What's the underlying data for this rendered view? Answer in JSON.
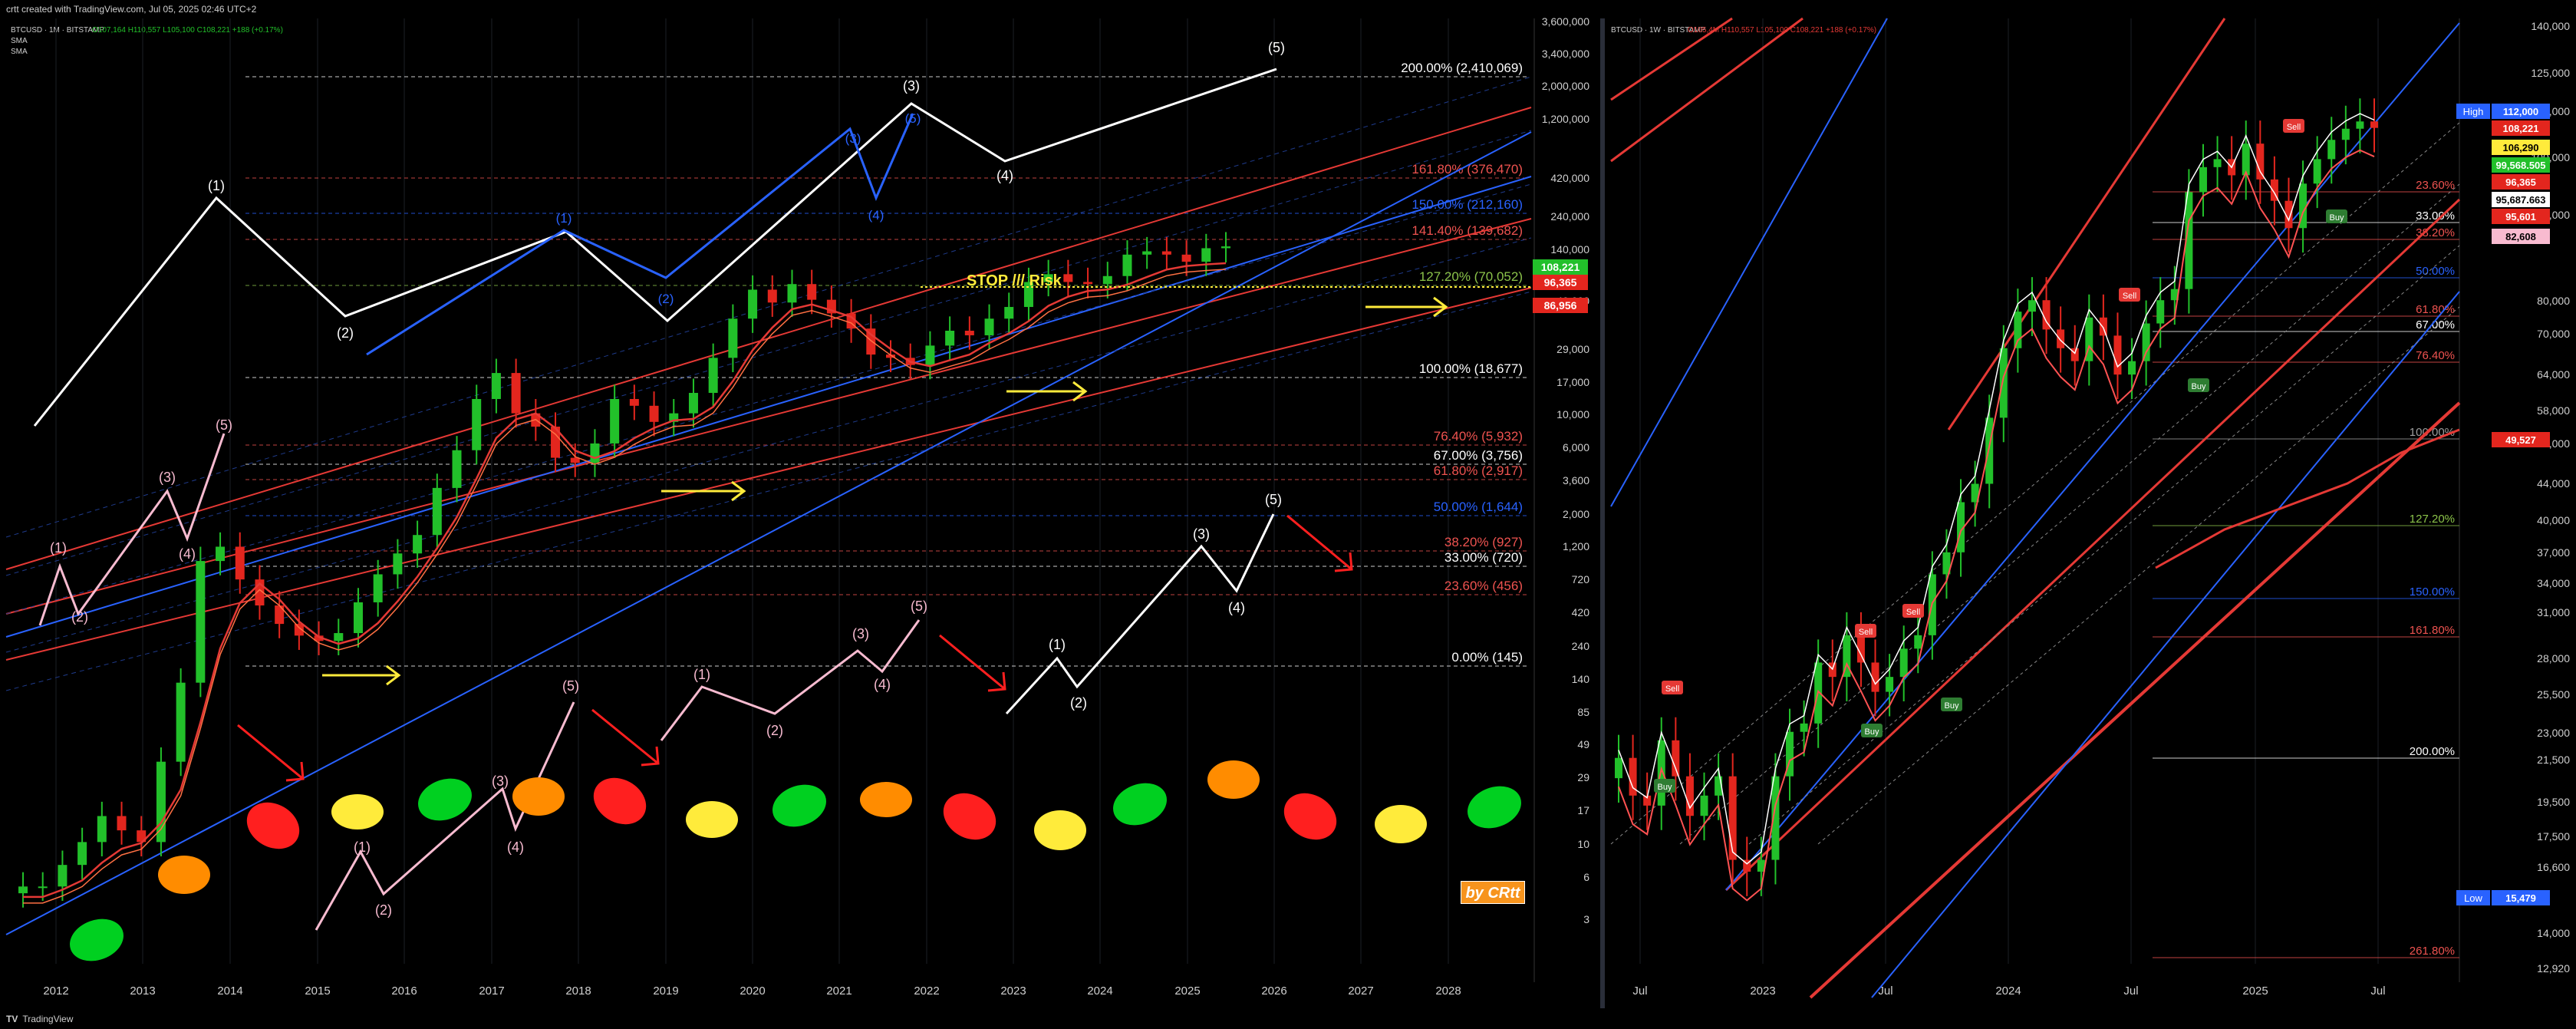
{
  "header": {
    "text": "crtt created with TradingView.com, Jul 05, 2025 02:46 UTC+2"
  },
  "footer": {
    "brand": "TradingView"
  },
  "byline": "by CRtt",
  "colors": {
    "up": "#22c02a",
    "down": "#e3261e",
    "white": "#ffffff",
    "blue": "#2962ff",
    "yellow": "#ffeb3b",
    "orange": "#ff8c00",
    "pink": "#f8bbd0",
    "red": "#ff3b30"
  },
  "chart_data": [
    {
      "type": "candlestick",
      "title": "BTCUSD · 1M · BITSTAMP",
      "ohlc": {
        "open": "107,164",
        "high": "110,557",
        "low": "105,100",
        "close": "108,221",
        "change": "+188 (+0.17%)"
      },
      "indicators": [
        "SMA",
        "SMA"
      ],
      "y_scale": "log",
      "x_ticks": [
        "2012",
        "2013",
        "2014",
        "2015",
        "2016",
        "2017",
        "2018",
        "2019",
        "2020",
        "2021",
        "2022",
        "2023",
        "2024",
        "2025",
        "2026",
        "2027",
        "2028"
      ],
      "y_ticks": [
        "3,600,000",
        "3,400,000",
        "2,000,000",
        "1,200,000",
        "420,000",
        "240,000",
        "140,000",
        "49,000",
        "29,000",
        "17,000",
        "10,000",
        "6,000",
        "3,600",
        "2,000",
        "1,200",
        "720",
        "420",
        "240",
        "140",
        "85",
        "49",
        "29",
        "17",
        "10",
        "6",
        "3"
      ],
      "price_badges": [
        {
          "value": "108,221",
          "color": "#22c02a"
        },
        {
          "value": "96,365",
          "color": "#e3261e"
        },
        {
          "value": "86,956",
          "color": "#e3261e"
        }
      ],
      "fib_levels": [
        {
          "label": "200.00% (2,410,069)",
          "color": "#ffffff"
        },
        {
          "label": "161.80% (376,470)",
          "color": "#ef5350"
        },
        {
          "label": "150.00% (212,160)",
          "color": "#2962ff"
        },
        {
          "label": "141.40% (139,682)",
          "color": "#ef5350"
        },
        {
          "label": "127.20% (70,052)",
          "color": "#8bc34a"
        },
        {
          "label": "100.00% (18,677)",
          "color": "#ffffff"
        },
        {
          "label": "76.40% (5,932)",
          "color": "#ef5350"
        },
        {
          "label": "67.00% (3,756)",
          "color": "#ffffff"
        },
        {
          "label": "61.80% (2,917)",
          "color": "#ef5350"
        },
        {
          "label": "50.00% (1,644)",
          "color": "#2962ff"
        },
        {
          "label": "38.20% (927)",
          "color": "#ef5350"
        },
        {
          "label": "33.00% (720)",
          "color": "#ffffff"
        },
        {
          "label": "23.60% (456)",
          "color": "#ef5350"
        },
        {
          "label": "0.00% (145)",
          "color": "#ffffff"
        }
      ],
      "annotation": "STOP /// Risk",
      "wave_labels_white_top": [
        "(1)",
        "(2)",
        "(3)",
        "(4)",
        "(5)"
      ],
      "wave_labels_blue": [
        "(1)",
        "(2)",
        "(3)",
        "(4)",
        "(5)"
      ],
      "wave_labels_pink_left": [
        "(1)",
        "(2)",
        "(3)",
        "(4)",
        "(5)"
      ],
      "wave_labels_pink_mid": [
        "(1)",
        "(2)",
        "(3)",
        "(4)",
        "(5)"
      ],
      "wave_labels_white_bottom": [
        "(1)",
        "(2)",
        "(3)",
        "(4)",
        "(5)"
      ],
      "cycle_ellipses": [
        "green",
        "orange",
        "red",
        "yellow",
        "green",
        "orange",
        "red",
        "yellow",
        "green",
        "orange",
        "red",
        "yellow",
        "green",
        "orange",
        "red",
        "yellow",
        "green"
      ]
    },
    {
      "type": "candlestick",
      "title": "BTCUSD · 1W · BITSTAMP",
      "ohlc": {
        "open": "105,4M",
        "high": "110,557",
        "low": "105,100",
        "close": "108,221",
        "change": "+188 (+0.17%)"
      },
      "x_ticks": [
        "Jul",
        "2023",
        "Jul",
        "2024",
        "Jul",
        "2025",
        "Jul"
      ],
      "y_ticks": [
        "140,000",
        "125,000",
        "112,000",
        "100,000",
        "90,000",
        "80,000",
        "70,000",
        "64,000",
        "58,000",
        "52,000",
        "44,000",
        "40,000",
        "37,000",
        "34,000",
        "31,000",
        "28,000",
        "25,500",
        "23,000",
        "21,500",
        "19,500",
        "17,500",
        "16,600",
        "14,000",
        "12,920"
      ],
      "price_badges": [
        {
          "label": "High",
          "value": "112,000",
          "color": "#2962ff"
        },
        {
          "value": "108,221",
          "color": "#e3261e"
        },
        {
          "value": "106,290",
          "color": "#ffeb3b"
        },
        {
          "value": "99,568.505",
          "color": "#22c02a"
        },
        {
          "value": "96,365",
          "color": "#e3261e"
        },
        {
          "value": "95,687.663",
          "color": "#ffffff"
        },
        {
          "value": "95,601",
          "color": "#e3261e"
        },
        {
          "value": "82,608",
          "color": "#f8bbd0"
        },
        {
          "value": "49,527",
          "color": "#e3261e"
        },
        {
          "label": "Low",
          "value": "15,479",
          "color": "#2962ff"
        }
      ],
      "fib_levels": [
        {
          "label": "23.60%",
          "color": "#ef5350"
        },
        {
          "label": "33.00%",
          "color": "#ffffff"
        },
        {
          "label": "38.20%",
          "color": "#ef5350"
        },
        {
          "label": "50.00%",
          "color": "#2962ff"
        },
        {
          "label": "61.80%",
          "color": "#ef5350"
        },
        {
          "label": "67.00%",
          "color": "#ffffff"
        },
        {
          "label": "76.40%",
          "color": "#ef5350"
        },
        {
          "label": "100.00%",
          "color": "#9e9e9e"
        },
        {
          "label": "127.20%",
          "color": "#8bc34a"
        },
        {
          "label": "150.00%",
          "color": "#2962ff"
        },
        {
          "label": "161.80%",
          "color": "#ef5350"
        },
        {
          "label": "200.00%",
          "color": "#ffffff"
        },
        {
          "label": "261.80%",
          "color": "#ef5350"
        }
      ],
      "signals": [
        "Sell",
        "Buy",
        "Sell",
        "Sell",
        "Buy",
        "Buy",
        "Sell",
        "Buy",
        "Sell",
        "Buy"
      ]
    }
  ]
}
